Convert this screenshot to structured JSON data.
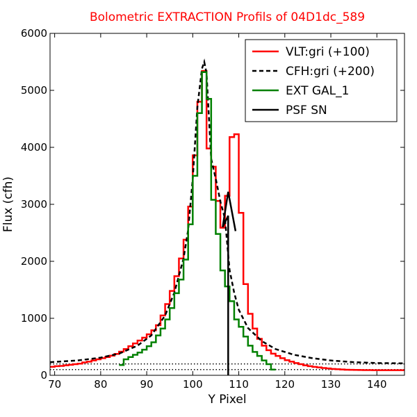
{
  "chart_data": {
    "type": "line",
    "title": "Bolometric EXTRACTION Profils of 04D1dc_589",
    "xlabel": "Y Pixel",
    "ylabel": "Flux (cfh)",
    "xlim": [
      69,
      146
    ],
    "ylim": [
      0,
      6000
    ],
    "xticks": [
      70,
      80,
      90,
      100,
      110,
      120,
      130,
      140
    ],
    "yticks": [
      0,
      1000,
      2000,
      3000,
      4000,
      5000,
      6000
    ],
    "grid": false,
    "legend_position": "top-right",
    "series": [
      {
        "name": "VLT:gri (+100)",
        "color": "#ff0000",
        "style": "step",
        "x": [
          69,
          70,
          71,
          72,
          73,
          74,
          75,
          76,
          77,
          78,
          79,
          80,
          81,
          82,
          83,
          84,
          85,
          86,
          87,
          88,
          89,
          90,
          91,
          92,
          93,
          94,
          95,
          96,
          97,
          98,
          99,
          100,
          101,
          102,
          103,
          104,
          105,
          106,
          107,
          108,
          109,
          110,
          111,
          112,
          113,
          114,
          115,
          116,
          117,
          118,
          119,
          120,
          121,
          122,
          123,
          124,
          125,
          126,
          127,
          128,
          129,
          130,
          131,
          132,
          133,
          134,
          135,
          136,
          137,
          138,
          139,
          140,
          141,
          142,
          143,
          144,
          145
        ],
        "y": [
          150,
          160,
          165,
          175,
          185,
          195,
          205,
          225,
          240,
          260,
          280,
          300,
          320,
          345,
          375,
          415,
          460,
          510,
          560,
          610,
          660,
          720,
          790,
          880,
          1050,
          1250,
          1480,
          1740,
          2050,
          2380,
          2960,
          3860,
          4800,
          5340,
          3980,
          3660,
          3060,
          2590,
          3150,
          4180,
          4230,
          2850,
          1600,
          1080,
          820,
          640,
          520,
          440,
          380,
          340,
          300,
          265,
          240,
          215,
          195,
          175,
          160,
          148,
          138,
          128,
          120,
          112,
          106,
          102,
          98,
          96,
          94,
          93,
          92,
          91,
          90,
          90,
          90,
          90,
          90,
          90,
          90
        ]
      },
      {
        "name": "CFH:gri (+200)",
        "color": "#000000",
        "style": "dashed",
        "x": [
          69,
          75,
          80,
          84,
          88,
          91,
          94,
          96,
          98,
          99,
          100,
          101,
          102,
          102.5,
          103,
          104,
          105,
          106,
          107,
          108,
          109,
          110,
          112,
          115,
          118,
          122,
          126,
          130,
          135,
          140,
          146
        ],
        "y": [
          230,
          260,
          310,
          380,
          520,
          700,
          1050,
          1450,
          2050,
          2550,
          3450,
          4700,
          5380,
          5500,
          5300,
          3800,
          3450,
          3050,
          2750,
          1850,
          1450,
          1150,
          830,
          600,
          460,
          360,
          300,
          260,
          230,
          215,
          210
        ]
      },
      {
        "name": "EXT GAL_1",
        "color": "#008000",
        "style": "step",
        "x": [
          84,
          85,
          86,
          87,
          88,
          89,
          90,
          91,
          92,
          93,
          94,
          95,
          96,
          97,
          98,
          99,
          100,
          101,
          102,
          103,
          104,
          105,
          106,
          107,
          108,
          109,
          110,
          111,
          112,
          113,
          114,
          115,
          116,
          117
        ],
        "y": [
          180,
          280,
          320,
          360,
          400,
          450,
          510,
          580,
          700,
          820,
          980,
          1180,
          1440,
          1680,
          2030,
          2650,
          3500,
          4600,
          5320,
          4850,
          3080,
          2480,
          1840,
          1560,
          1300,
          980,
          850,
          680,
          520,
          410,
          340,
          260,
          195,
          100
        ]
      },
      {
        "name": "PSF SN",
        "color": "#000000",
        "style": "solid",
        "x": [
          107.7,
          107.7,
          106.5,
          107.7,
          109.3
        ],
        "y": [
          0,
          2800,
          2600,
          3220,
          2530
        ]
      }
    ],
    "reference_lines": [
      {
        "y": 100,
        "style": "dotted",
        "color": "#000000"
      },
      {
        "y": 200,
        "style": "dotted",
        "color": "#000000"
      }
    ]
  }
}
